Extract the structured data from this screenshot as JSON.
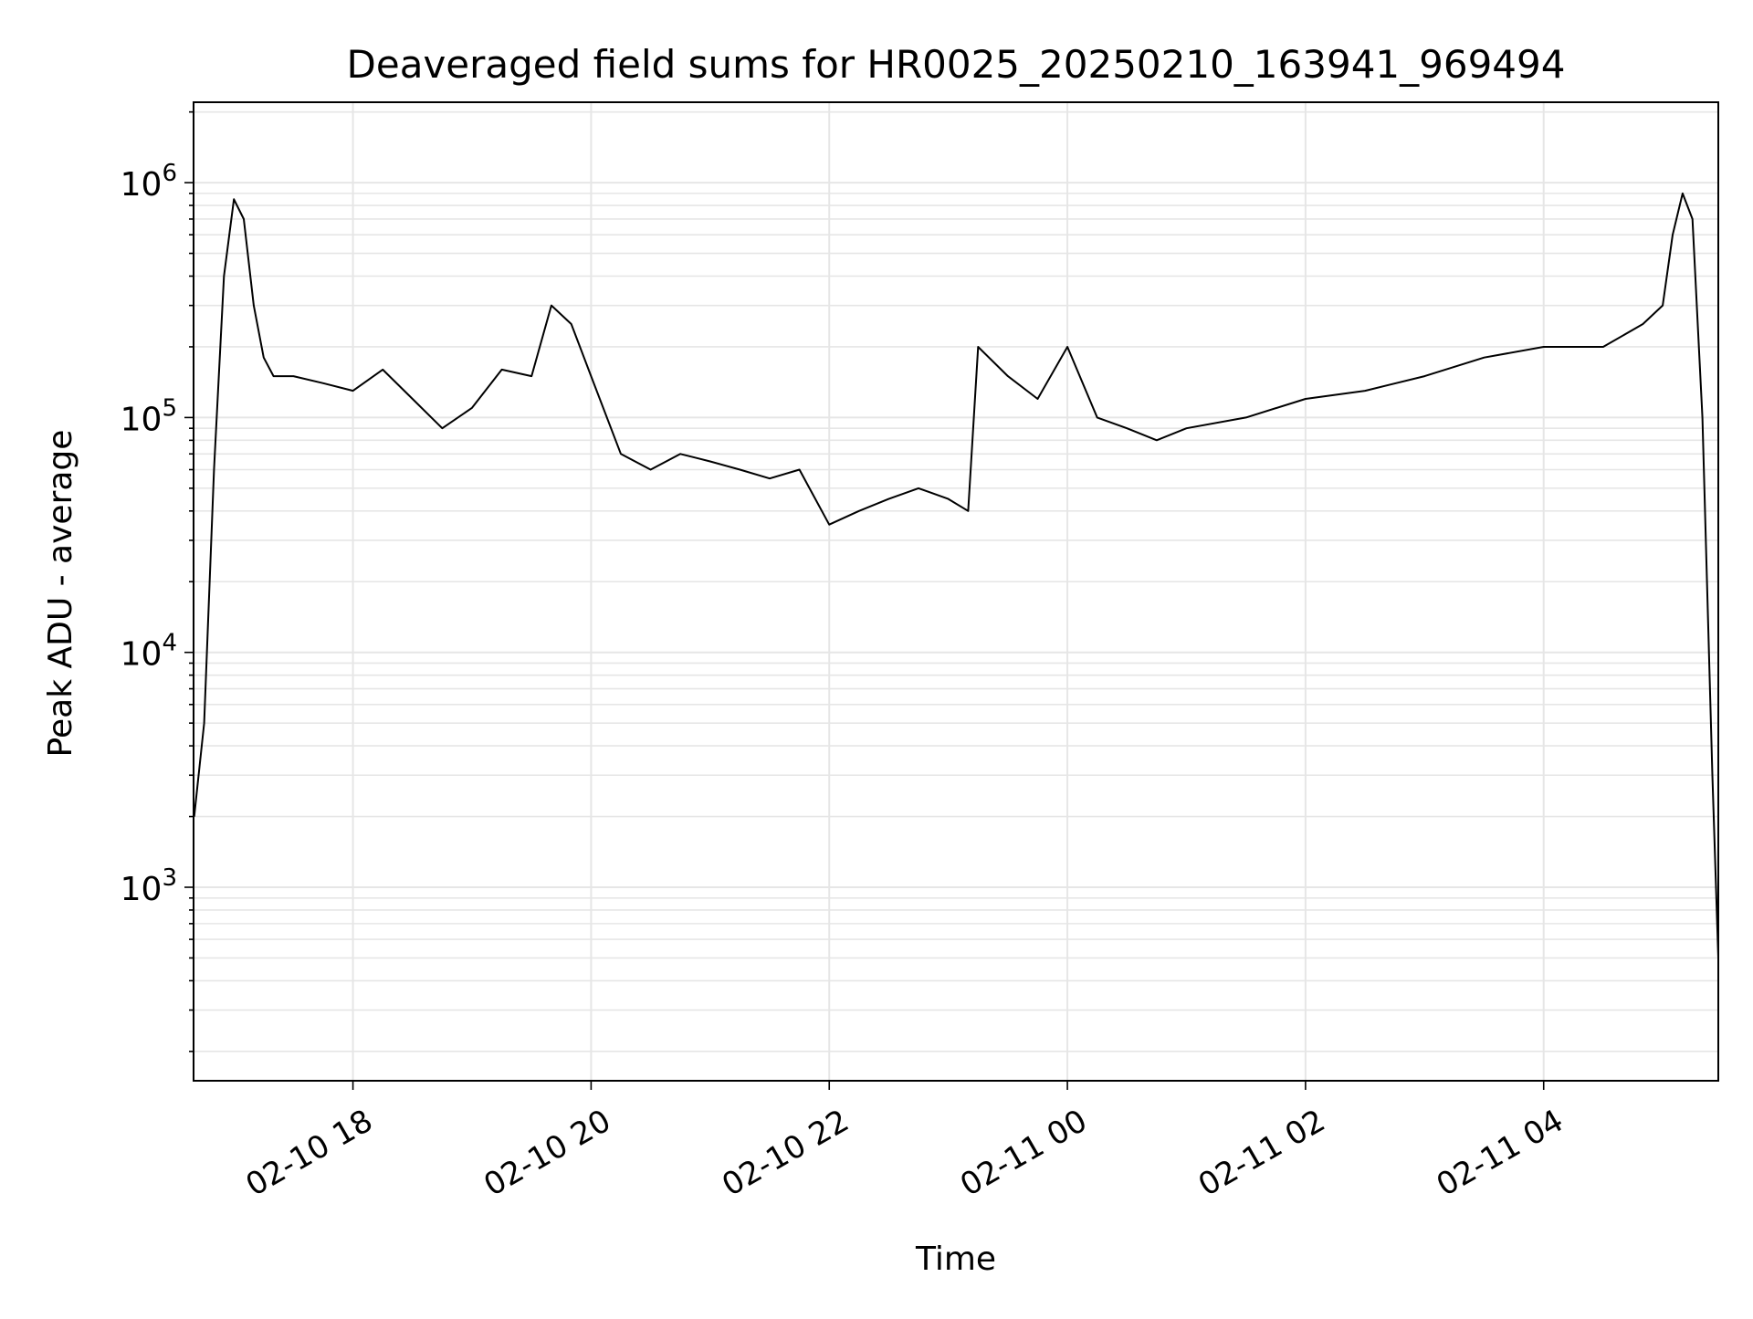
{
  "chart_data": {
    "type": "line",
    "title": "Deaveraged field sums for HR0025_20250210_163941_969494",
    "xlabel": "Time",
    "ylabel": "Peak ADU - average",
    "y_scale": "log",
    "ylim": [
      150,
      2200000
    ],
    "xlim": [
      "2025-02-10 16:39:41",
      "2025-02-11 05:28:00"
    ],
    "x_tick_labels": [
      "02-10 18",
      "02-10 20",
      "02-10 22",
      "02-11 00",
      "02-11 02",
      "02-11 04"
    ],
    "x_tick_values": [
      "2025-02-10 18:00",
      "2025-02-10 20:00",
      "2025-02-10 22:00",
      "2025-02-11 00:00",
      "2025-02-11 02:00",
      "2025-02-11 04:00"
    ],
    "y_tick_values": [
      1000,
      10000,
      100000,
      1000000
    ],
    "y_tick_labels": [
      {
        "base": "10",
        "exp": "3"
      },
      {
        "base": "10",
        "exp": "4"
      },
      {
        "base": "10",
        "exp": "5"
      },
      {
        "base": "10",
        "exp": "6"
      }
    ],
    "grid": true,
    "legend": "none",
    "line_color": "#000000",
    "grid_color": "#e6e6e6",
    "series": [
      {
        "x": [
          "2025-02-10 16:40",
          "2025-02-10 16:45",
          "2025-02-10 16:50",
          "2025-02-10 16:55",
          "2025-02-10 17:00",
          "2025-02-10 17:05",
          "2025-02-10 17:10",
          "2025-02-10 17:15",
          "2025-02-10 17:20",
          "2025-02-10 17:30",
          "2025-02-10 17:45",
          "2025-02-10 18:00",
          "2025-02-10 18:15",
          "2025-02-10 18:30",
          "2025-02-10 18:45",
          "2025-02-10 19:00",
          "2025-02-10 19:15",
          "2025-02-10 19:30",
          "2025-02-10 19:40",
          "2025-02-10 19:50",
          "2025-02-10 20:00",
          "2025-02-10 20:15",
          "2025-02-10 20:30",
          "2025-02-10 20:45",
          "2025-02-10 21:00",
          "2025-02-10 21:15",
          "2025-02-10 21:30",
          "2025-02-10 21:45",
          "2025-02-10 22:00",
          "2025-02-10 22:15",
          "2025-02-10 22:30",
          "2025-02-10 22:45",
          "2025-02-10 23:00",
          "2025-02-10 23:10",
          "2025-02-10 23:15",
          "2025-02-10 23:30",
          "2025-02-10 23:45",
          "2025-02-11 00:00",
          "2025-02-11 00:15",
          "2025-02-11 00:30",
          "2025-02-11 00:45",
          "2025-02-11 01:00",
          "2025-02-11 01:30",
          "2025-02-11 02:00",
          "2025-02-11 02:30",
          "2025-02-11 03:00",
          "2025-02-11 03:30",
          "2025-02-11 04:00",
          "2025-02-11 04:30",
          "2025-02-11 04:50",
          "2025-02-11 05:00",
          "2025-02-11 05:05",
          "2025-02-11 05:10",
          "2025-02-11 05:15",
          "2025-02-11 05:20",
          "2025-02-11 05:25",
          "2025-02-11 05:28"
        ],
        "y": [
          2000,
          5000,
          60000,
          400000,
          850000,
          700000,
          300000,
          180000,
          150000,
          150000,
          140000,
          130000,
          160000,
          120000,
          90000,
          110000,
          160000,
          150000,
          300000,
          250000,
          150000,
          70000,
          60000,
          70000,
          65000,
          60000,
          55000,
          60000,
          35000,
          40000,
          45000,
          50000,
          45000,
          40000,
          200000,
          150000,
          120000,
          200000,
          100000,
          90000,
          80000,
          90000,
          100000,
          120000,
          130000,
          150000,
          180000,
          200000,
          200000,
          250000,
          300000,
          600000,
          900000,
          700000,
          100000,
          3000,
          500
        ]
      }
    ]
  }
}
